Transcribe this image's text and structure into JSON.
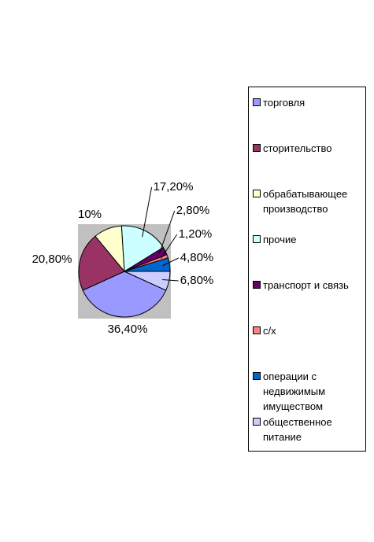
{
  "chart_data": {
    "type": "pie",
    "categories": [
      "торговля",
      "сторительство",
      "обрабатывающее производство",
      "прочие",
      "транспорт и связь",
      "с/х",
      "операции с недвижимым имуществом",
      "общественное питание"
    ],
    "values": [
      36.4,
      20.8,
      10,
      17.2,
      2.8,
      1.2,
      4.8,
      6.8
    ],
    "value_labels": [
      "36,40%",
      "20,80%",
      "10%",
      "17,20%",
      "2,80%",
      "1,20%",
      "4,80%",
      "6,80%"
    ],
    "colors": [
      "#9999ff",
      "#993366",
      "#ffffcc",
      "#ccffff",
      "#660066",
      "#ff8080",
      "#0066cc",
      "#ccccff"
    ],
    "legend": "right"
  }
}
